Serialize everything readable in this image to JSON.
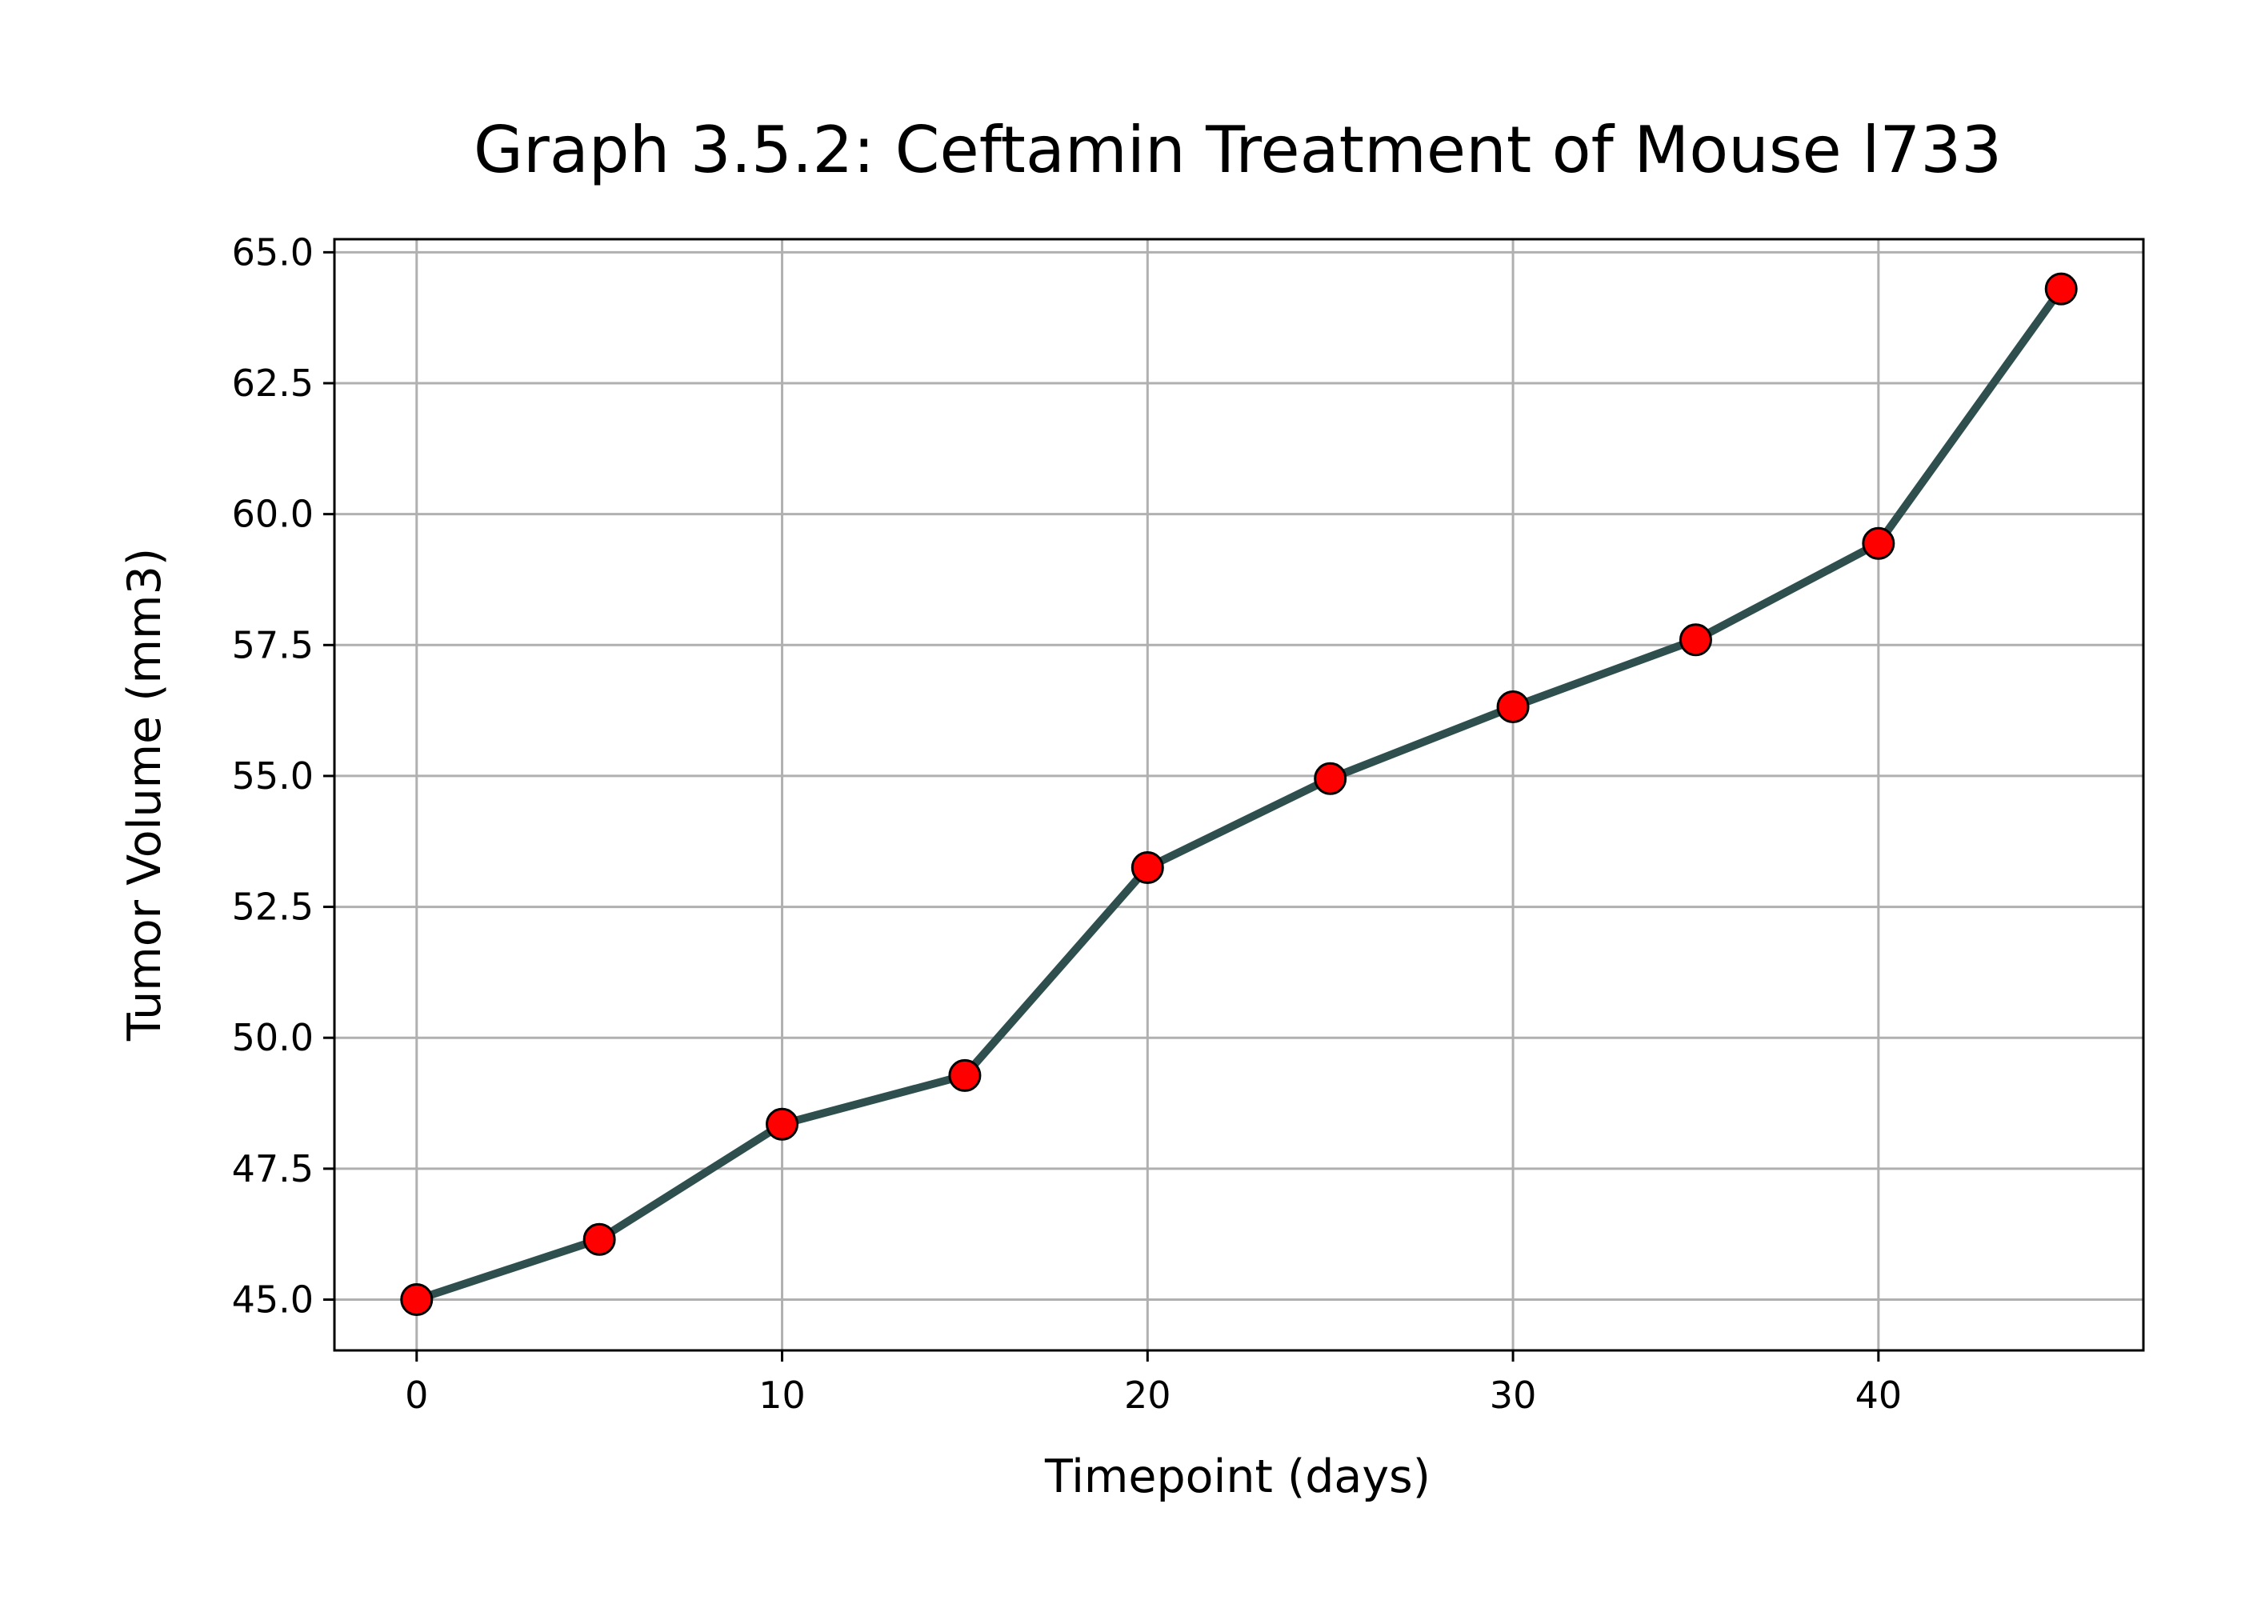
{
  "chart_data": {
    "type": "line",
    "title": "Graph 3.5.2: Ceftamin Treatment of Mouse l733",
    "xlabel": "Timepoint (days)",
    "ylabel": "Tumor Volume (mm3)",
    "xlim": [
      -2.25,
      47.25
    ],
    "ylim": [
      44.03,
      65.25
    ],
    "xticks": [
      0,
      10,
      20,
      30,
      40
    ],
    "xtick_labels": [
      "0",
      "10",
      "20",
      "30",
      "40"
    ],
    "yticks": [
      45.0,
      47.5,
      50.0,
      52.5,
      55.0,
      57.5,
      60.0,
      62.5,
      65.0
    ],
    "ytick_labels": [
      "45.0",
      "47.5",
      "50.0",
      "52.5",
      "55.0",
      "57.5",
      "60.0",
      "62.5",
      "65.0"
    ],
    "grid": true,
    "series": [
      {
        "x": [
          0,
          5,
          10,
          15,
          20,
          25,
          30,
          35,
          40,
          45
        ],
        "values": [
          45.0,
          46.15,
          48.35,
          49.28,
          53.25,
          54.95,
          56.32,
          57.6,
          59.44,
          64.3
        ],
        "line_color": "#2f4f4f",
        "marker_face": "#ff0000",
        "marker_edge": "#000000"
      }
    ]
  }
}
